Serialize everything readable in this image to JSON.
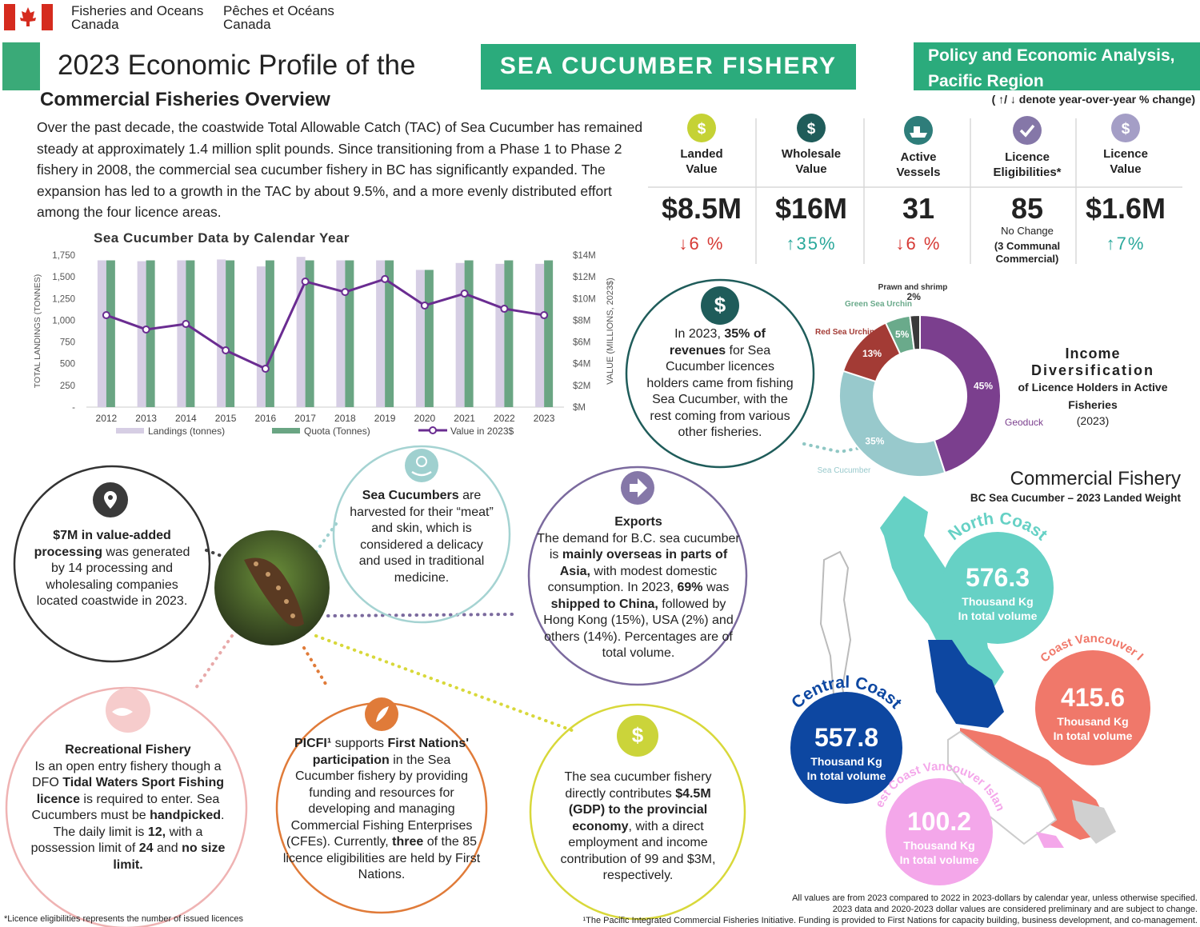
{
  "header": {
    "dept_en": [
      "Fisheries and Oceans",
      "Canada"
    ],
    "dept_fr": [
      "Pêches et Océans",
      "Canada"
    ],
    "title": "2023 Economic Profile of the",
    "banner": "SEA CUCUMBER FISHERY",
    "region": [
      "Policy and Economic Analysis,",
      "Pacific Region"
    ],
    "subtitle": "Commercial Fisheries Overview",
    "arrow_note": "( ↑/ ↓ denote year-over-year % change)"
  },
  "intro": "Over the past decade, the coastwide Total Allowable Catch (TAC)  of Sea Cucumber has remained steady at approximately 1.4 million split pounds. Since transitioning from a Phase 1 to Phase 2 fishery in 2008, the commercial sea cucumber fishery in BC has significantly expanded. The expansion has led to a growth in the TAC by about 9.5%, and a more evenly distributed effort among the four licence areas.",
  "kpis": [
    {
      "icon": "$",
      "icon_color": "#c5d235",
      "label": [
        "Landed",
        "Value"
      ],
      "value": "$8.5M",
      "change": "↓6 %",
      "color": "#d63a35"
    },
    {
      "icon": "$",
      "icon_color": "#1f5c5a",
      "label": [
        "Wholesale",
        "Value"
      ],
      "value": "$16M",
      "change": "↑35%",
      "color": "#2aa89b"
    },
    {
      "icon_color": "#2e7d7a",
      "label": [
        "Active",
        "Vessels"
      ],
      "value": "31",
      "change": "↓6 %",
      "color": "#d63a35"
    },
    {
      "icon_color": "#8577a8",
      "label": [
        "Licence",
        "Eligibilities*"
      ],
      "value": "85",
      "change": "No Change",
      "note": [
        "(3 Communal",
        "Commercial)"
      ],
      "color": "#222222"
    },
    {
      "icon": "$",
      "icon_color": "#a49ec6",
      "label": [
        "Licence",
        "Value"
      ],
      "value": "$1.6M",
      "change": "↑7%",
      "color": "#2aa89b"
    }
  ],
  "chart_data": [
    {
      "type": "combo",
      "title": "Sea Cucumber Data by Calendar Year",
      "y_label": "TOTAL LANDINGS (TONNES)",
      "y2_label": "VALUE (MILLIONS, 2023$)",
      "categories": [
        "2012",
        "2013",
        "2014",
        "2015",
        "2016",
        "2017",
        "2018",
        "2019",
        "2020",
        "2021",
        "2022",
        "2023"
      ],
      "series": [
        {
          "name": "Landings (tonnes)",
          "type": "bar",
          "color": "#d6cee4",
          "values": [
            1690,
            1680,
            1690,
            1700,
            1620,
            1730,
            1690,
            1690,
            1580,
            1660,
            1650,
            1650
          ]
        },
        {
          "name": "Quota (Tonnes)",
          "type": "bar",
          "color": "#6aa583",
          "values": [
            1690,
            1690,
            1690,
            1690,
            1690,
            1690,
            1690,
            1690,
            1580,
            1690,
            1690,
            1690
          ]
        },
        {
          "name": "Value in 2023$",
          "type": "line",
          "axis": "y2",
          "color": "#6a2c91",
          "values": [
            8.47,
            7.15,
            7.66,
            5.23,
            3.54,
            11.57,
            10.6,
            11.8,
            9.36,
            10.46,
            9.06,
            8.47
          ]
        }
      ],
      "ylim": [
        0,
        1750
      ],
      "yticks": [
        {
          "value": 0,
          "label": "-"
        },
        250,
        500,
        750,
        {
          "value": 1000,
          "label": "1,000"
        },
        {
          "value": 1250,
          "label": "1,250"
        },
        {
          "value": 1500,
          "label": "1,500"
        },
        {
          "value": 1750,
          "label": "1,750"
        }
      ],
      "y2lim": [
        0,
        14
      ],
      "y2ticks": [
        {
          "value": 0,
          "label": "$M"
        },
        {
          "value": 2,
          "label": "$2M"
        },
        {
          "value": 4,
          "label": "$4M"
        },
        {
          "value": 6,
          "label": "$6M"
        },
        {
          "value": 8,
          "label": "$8M"
        },
        {
          "value": 10,
          "label": "$10M"
        },
        {
          "value": 12,
          "label": "$12M"
        },
        {
          "value": 14,
          "label": "$14M"
        }
      ],
      "grid": false,
      "legend": "bottom"
    },
    {
      "type": "pie",
      "donut": true,
      "title": [
        "Income",
        "Diversification",
        "of Licence Holders in Active",
        "Fisheries",
        "(2023)"
      ],
      "categories": [
        "Geoduck",
        "Sea Cucumber",
        "Red Sea Urchin",
        "Green Sea Urchin",
        "Prawn and shrimp"
      ],
      "values": [
        45,
        35,
        13,
        5,
        2
      ],
      "value_labels": [
        "45%",
        "35%",
        "13%",
        "5%",
        "2%"
      ],
      "colors": [
        "#7b3f8e",
        "#98c9cc",
        "#a33b35",
        "#6aaa8b",
        "#3a3a3a"
      ]
    }
  ],
  "circles": [
    {
      "runs": [
        {
          "text": "$7M in value-added processing",
          "bold": true
        },
        " was generated by 14 processing and wholesaling companies located coastwide in 2023."
      ]
    },
    {
      "runs": [
        {
          "text": "Sea Cucumbers",
          "bold": true
        },
        " are harvested for their “meat” and skin, which is considered a delicacy and used in traditional medicine."
      ]
    },
    {
      "heading": "Exports",
      "runs": [
        "The demand for B.C. sea cucumber is ",
        {
          "text": "mainly overseas in parts of Asia,",
          "bold": true
        },
        " with modest domestic consumption. In 2023, ",
        {
          "text": "69%",
          "bold": true
        },
        " was ",
        {
          "text": "shipped to China,",
          "bold": true
        },
        " followed by Hong Kong (15%), USA (2%)  and others (14%). Percentages are of total volume."
      ]
    },
    {
      "heading": "Recreational Fishery",
      "runs": [
        "Is an open entry fishery though a DFO ",
        {
          "text": "Tidal Waters Sport Fishing licence",
          "bold": true
        },
        " is required to enter. Sea Cucumbers must be ",
        {
          "text": "handpicked",
          "bold": true
        },
        ". The daily limit is ",
        {
          "text": "12,",
          "bold": true
        },
        " with a possession limit of ",
        {
          "text": "24",
          "bold": true
        },
        " and ",
        {
          "text": "no size limit.",
          "bold": true
        }
      ]
    },
    {
      "runs": [
        {
          "text": "PICFI¹",
          "bold": true
        },
        " supports ",
        {
          "text": "First Nations' participation",
          "bold": true
        },
        " in the Sea Cucumber fishery by providing funding and resources for developing and managing Commercial Fishing Enterprises (CFEs). Currently, ",
        {
          "text": "three",
          "bold": true
        },
        " of the 85 licence eligibilities are held by First Nations."
      ]
    },
    {
      "icon": "$",
      "runs": [
        "The sea cucumber fishery directly contributes ",
        {
          "text": "$4.5M (GDP) to the provincial economy",
          "bold": true
        },
        ", with a direct employment and income contribution of 99 and $3M, respectively."
      ]
    },
    {
      "icon": "$",
      "runs": [
        "In 2023, ",
        {
          "text": "35% of revenues",
          "bold": true
        },
        " for Sea Cucumber licences holders came from fishing Sea Cucumber, with the rest coming from various other fisheries."
      ]
    }
  ],
  "map": {
    "title": "Commercial Fishery",
    "subtitle": "BC Sea Cucumber – 2023 Landed Weight",
    "unit": "Thousand Kg",
    "note": "In total volume",
    "regions": [
      {
        "name": "North Coast",
        "value": 576.3,
        "color": "#66d1c5"
      },
      {
        "name": "East Coast Vancouver Island",
        "value": 415.6,
        "color": "#f0786a"
      },
      {
        "name": "Central Coast",
        "value": 557.8,
        "color": "#0d47a1"
      },
      {
        "name": "West Coast Vancouver Island",
        "value": 100.2,
        "color": "#f4a7ea"
      }
    ]
  },
  "footnotes": {
    "left": "*Licence eligibilities represents the number of issued licences",
    "right": [
      "All values are from 2023 compared to 2022 in 2023-dollars by calendar year, unless otherwise specified.",
      "2023 data and 2020-2023 dollar values are considered preliminary and are subject to change.",
      "¹The Pacific Integrated Commercial Fisheries Initiative. Funding is provided to First Nations for capacity building, business development, and co-management."
    ]
  }
}
